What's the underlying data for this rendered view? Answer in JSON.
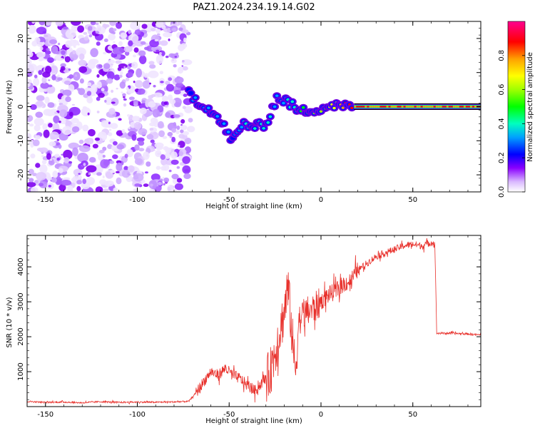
{
  "title": "PAZ1.2024.234.19.14.G02",
  "chart_data": [
    {
      "type": "heatmap",
      "xlabel": "Height of straight line (km)",
      "ylabel": "Frequency (Hz)",
      "xlim": [
        -160,
        87
      ],
      "ylim": [
        -25,
        25
      ],
      "xticks": [
        -150,
        -100,
        -50,
        0,
        50
      ],
      "yticks": [
        -20,
        -10,
        0,
        10,
        20
      ],
      "colorbar": {
        "label": "Normalized spectral amplitude",
        "range": [
          0,
          1
        ],
        "ticks": [
          0.0,
          0.2,
          0.4,
          0.6,
          0.8
        ]
      },
      "noise_region_x": [
        -160,
        -72
      ],
      "trace": [
        {
          "x": -72,
          "y": 4,
          "amplitude": 0.2
        },
        {
          "x": -66,
          "y": 1,
          "amplitude": 0.25
        },
        {
          "x": -60,
          "y": -1,
          "amplitude": 0.3
        },
        {
          "x": -54,
          "y": -5,
          "amplitude": 0.25
        },
        {
          "x": -48,
          "y": -10,
          "amplitude": 0.2
        },
        {
          "x": -42,
          "y": -5,
          "amplitude": 0.3
        },
        {
          "x": -36,
          "y": -6,
          "amplitude": 0.35
        },
        {
          "x": -30,
          "y": -5,
          "amplitude": 0.35
        },
        {
          "x": -24,
          "y": 2.5,
          "amplitude": 0.25
        },
        {
          "x": -18,
          "y": 1.5,
          "amplitude": 0.3
        },
        {
          "x": -12,
          "y": -1.5,
          "amplitude": 0.4
        },
        {
          "x": -6,
          "y": -1,
          "amplitude": 0.5
        },
        {
          "x": 0,
          "y": -0.5,
          "amplitude": 0.55
        },
        {
          "x": 6,
          "y": 0.5,
          "amplitude": 0.6
        },
        {
          "x": 12,
          "y": 0,
          "amplitude": 0.75
        },
        {
          "x": 18,
          "y": 0,
          "amplitude": 0.9
        },
        {
          "x": 87,
          "y": 0,
          "amplitude": 1.0
        }
      ]
    },
    {
      "type": "line",
      "xlabel": "Height of straight line (km)",
      "ylabel": "SNR (10 * v/v)",
      "xlim": [
        -160,
        87
      ],
      "ylim": [
        0,
        4900
      ],
      "xticks": [
        -150,
        -100,
        -50,
        0,
        50
      ],
      "yticks": [
        1000,
        2000,
        3000,
        4000
      ],
      "color": "#e8302b",
      "series": [
        {
          "x": [
            -160,
            -150,
            -140,
            -130,
            -120,
            -110,
            -100,
            -90,
            -80,
            -72,
            -68,
            -64,
            -60,
            -56,
            -52,
            -48,
            -44,
            -40,
            -36,
            -32,
            -28,
            -24,
            -20,
            -18,
            -16,
            -14,
            -12,
            -8,
            -4,
            0,
            4,
            8,
            12,
            16,
            20,
            25,
            30,
            35,
            40,
            45,
            50,
            55,
            60,
            62,
            63,
            70,
            80,
            87
          ],
          "y": [
            150,
            120,
            130,
            110,
            140,
            120,
            130,
            125,
            135,
            150,
            400,
            700,
            1000,
            900,
            1100,
            900,
            800,
            600,
            450,
            700,
            900,
            1800,
            2700,
            3500,
            2200,
            1000,
            2500,
            2700,
            2800,
            3000,
            3200,
            3300,
            3500,
            3600,
            3900,
            4100,
            4300,
            4400,
            4500,
            4600,
            4650,
            4600,
            4700,
            4650,
            2100,
            2100,
            2080,
            2050
          ]
        }
      ]
    }
  ]
}
